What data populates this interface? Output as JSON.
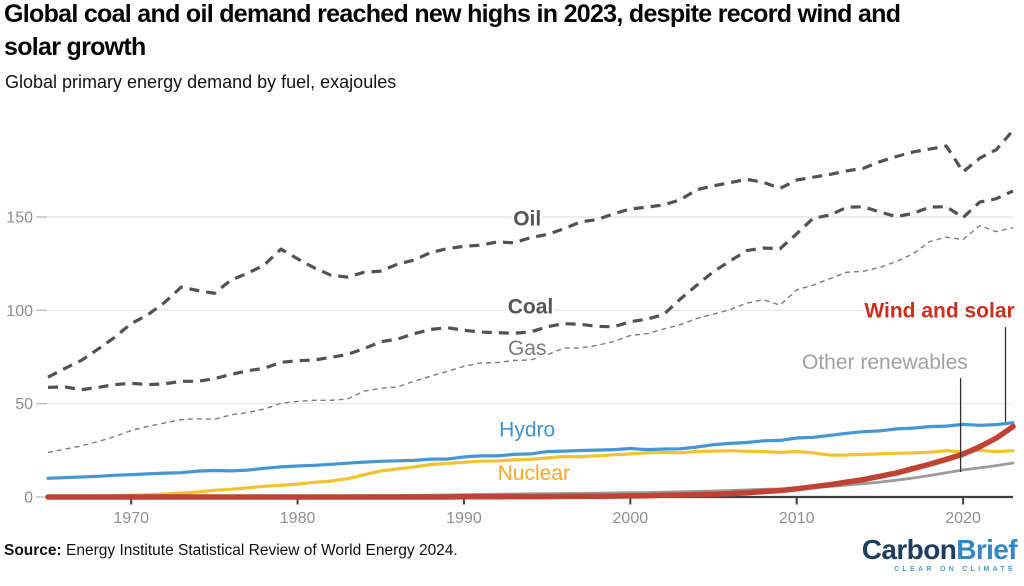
{
  "header": {
    "title_line1": "Global coal and oil demand reached new highs in 2023, despite record wind and",
    "title_line2": "solar growth",
    "subtitle": "Global primary energy demand by fuel, exajoules"
  },
  "footer": {
    "source_label": "Source:",
    "source_text": " Energy Institute Statistical Review of World Energy 2024.",
    "logo": {
      "word_dark": "Carbon",
      "word_light": "Brief",
      "tagline": "CLEAR ON CLIMATE",
      "navy": "#1d3e5f",
      "blue": "#3287c4",
      "tagline_color": "#459fd3"
    }
  },
  "chart_data": {
    "type": "line",
    "title": "Global primary energy demand by fuel, exajoules",
    "xlabel": "",
    "ylabel": "exajoules",
    "x_range": [
      1965,
      2023
    ],
    "ylim": [
      0,
      200
    ],
    "yticks": [
      0,
      50,
      100,
      150
    ],
    "xticks": [
      1970,
      1980,
      1990,
      2000,
      2010,
      2020
    ],
    "grid": "horizontal",
    "legend_position": "inline-labels",
    "years": [
      1965,
      1966,
      1967,
      1968,
      1969,
      1970,
      1971,
      1972,
      1973,
      1974,
      1975,
      1976,
      1977,
      1978,
      1979,
      1980,
      1981,
      1982,
      1983,
      1984,
      1985,
      1986,
      1987,
      1988,
      1989,
      1990,
      1991,
      1992,
      1993,
      1994,
      1995,
      1996,
      1997,
      1998,
      1999,
      2000,
      2001,
      2002,
      2003,
      2004,
      2005,
      2006,
      2007,
      2008,
      2009,
      2010,
      2011,
      2012,
      2013,
      2014,
      2015,
      2016,
      2017,
      2018,
      2019,
      2020,
      2021,
      2022,
      2023
    ],
    "series": [
      {
        "id": "gas",
        "label": "Gas",
        "color": "#7d7d7d",
        "label_color": "#7a7a7a",
        "width": 1.4,
        "dash": "5 4",
        "label_year": 1993.8,
        "label_ej": 80.0,
        "label_bold": false,
        "values": [
          23.9,
          25.6,
          27.4,
          29.7,
          32.3,
          35.6,
          37.8,
          39.6,
          41.4,
          41.9,
          41.6,
          44.0,
          45.3,
          47.1,
          50.2,
          51.2,
          51.8,
          51.8,
          52.5,
          56.7,
          58.3,
          59.0,
          62.0,
          64.7,
          67.3,
          70.0,
          71.8,
          72.0,
          73.1,
          73.4,
          76.1,
          79.9,
          79.8,
          81.2,
          83.3,
          86.5,
          87.5,
          90.0,
          92.3,
          95.7,
          98.0,
          100.4,
          103.9,
          105.7,
          102.8,
          111.0,
          113.5,
          117.0,
          120.4,
          120.9,
          123.0,
          126.2,
          130.3,
          136.9,
          139.2,
          137.9,
          145.4,
          142.1,
          144.4
        ]
      },
      {
        "id": "oil",
        "label": "Oil",
        "color": "#525252",
        "label_color": "#555555",
        "width": 3.2,
        "dash": "10 7",
        "label_year": 1993.8,
        "label_ej": 149.5,
        "label_bold": true,
        "values": [
          64.2,
          68.8,
          73.2,
          79.2,
          85.5,
          92.9,
          97.6,
          104.2,
          112.4,
          110.6,
          109.1,
          116.2,
          119.9,
          124.3,
          132.8,
          127.6,
          122.8,
          118.8,
          117.8,
          120.4,
          121.0,
          124.7,
          126.9,
          131.0,
          133.0,
          134.3,
          134.9,
          136.6,
          136.2,
          138.9,
          140.6,
          143.7,
          147.4,
          148.6,
          151.7,
          154.3,
          155.3,
          156.5,
          159.2,
          164.6,
          166.7,
          168.4,
          170.2,
          168.6,
          165.3,
          169.8,
          171.3,
          172.8,
          174.7,
          176.1,
          179.6,
          182.4,
          184.9,
          186.4,
          188.0,
          174.2,
          181.5,
          186.1,
          196.4
        ]
      },
      {
        "id": "coal",
        "label": "Coal",
        "color": "#525252",
        "label_color": "#555555",
        "width": 3.2,
        "dash": "10 7",
        "label_year": 1994.0,
        "label_ej": 102.3,
        "label_bold": true,
        "values": [
          58.7,
          59.0,
          57.5,
          58.7,
          60.2,
          60.9,
          60.2,
          60.6,
          62.0,
          62.0,
          63.4,
          65.7,
          67.6,
          69.0,
          72.1,
          73.0,
          73.4,
          74.8,
          76.4,
          79.5,
          83.2,
          84.6,
          87.5,
          89.8,
          90.7,
          89.3,
          88.4,
          88.0,
          87.7,
          88.4,
          91.2,
          92.9,
          92.5,
          91.4,
          91.2,
          93.9,
          95.3,
          97.7,
          106.0,
          113.5,
          120.7,
          126.5,
          132.0,
          133.4,
          133.0,
          141.0,
          149.4,
          151.0,
          155.2,
          155.5,
          152.6,
          150.2,
          152.0,
          155.3,
          155.5,
          149.7,
          158.0,
          159.8,
          164.0
        ]
      },
      {
        "id": "other-renewables",
        "label": "Other renewables",
        "color": "#9b9b9b",
        "label_color": "#a1a1a1",
        "width": 2.8,
        "dash": null,
        "label_year": 2015.3,
        "label_ej": 72.5,
        "label_bold": false,
        "values": [
          0.1,
          0.1,
          0.1,
          0.1,
          0.1,
          0.2,
          0.2,
          0.2,
          0.2,
          0.2,
          0.3,
          0.3,
          0.3,
          0.4,
          0.4,
          0.5,
          0.5,
          0.6,
          0.6,
          0.7,
          0.8,
          0.8,
          0.9,
          1.0,
          1.1,
          1.3,
          1.4,
          1.5,
          1.6,
          1.7,
          1.8,
          1.9,
          2.0,
          2.1,
          2.2,
          2.3,
          2.4,
          2.6,
          2.8,
          3.0,
          3.2,
          3.5,
          3.8,
          4.1,
          4.3,
          4.6,
          5.1,
          5.7,
          6.4,
          7.1,
          8.0,
          9.0,
          10.2,
          11.5,
          13.0,
          14.5,
          15.6,
          16.8,
          18.2
        ]
      },
      {
        "id": "nuclear",
        "label": "Nuclear",
        "color": "#f2c22f",
        "label_color": "#f7a82a",
        "width": 3.2,
        "dash": null,
        "label_year": 1994.2,
        "label_ej": 13.0,
        "label_bold": false,
        "values": [
          0.3,
          0.4,
          0.5,
          0.6,
          0.7,
          0.9,
          1.2,
          1.6,
          2.1,
          2.7,
          3.6,
          4.1,
          4.9,
          5.8,
          6.2,
          6.9,
          7.9,
          8.5,
          9.8,
          11.9,
          14.0,
          15.0,
          16.1,
          17.4,
          18.0,
          18.6,
          19.2,
          19.3,
          19.9,
          20.2,
          20.9,
          21.7,
          21.6,
          22.0,
          22.6,
          23.1,
          23.6,
          23.9,
          23.7,
          24.4,
          24.6,
          24.8,
          24.5,
          24.3,
          23.9,
          24.4,
          23.7,
          22.4,
          22.5,
          22.8,
          23.1,
          23.4,
          23.6,
          24.0,
          24.8,
          24.1,
          25.0,
          24.3,
          24.8
        ]
      },
      {
        "id": "hydro",
        "label": "Hydro",
        "color": "#4597d3",
        "label_color": "#3f93d5",
        "width": 3.2,
        "dash": null,
        "label_year": 1993.8,
        "label_ej": 36.3,
        "label_bold": false,
        "values": [
          10.0,
          10.4,
          10.7,
          11.1,
          11.6,
          12.0,
          12.4,
          12.8,
          13.0,
          13.9,
          14.2,
          14.0,
          14.4,
          15.4,
          16.1,
          16.6,
          17.0,
          17.5,
          18.1,
          18.7,
          19.1,
          19.4,
          19.6,
          20.3,
          20.3,
          21.5,
          22.0,
          22.0,
          22.8,
          23.1,
          24.3,
          24.6,
          24.9,
          25.1,
          25.4,
          26.0,
          25.4,
          25.7,
          25.8,
          26.8,
          28.0,
          28.7,
          29.2,
          30.1,
          30.3,
          31.6,
          32.0,
          33.0,
          34.1,
          35.0,
          35.4,
          36.5,
          36.9,
          37.7,
          38.0,
          38.9,
          38.4,
          38.8,
          39.8
        ]
      },
      {
        "id": "wind-and-solar",
        "label": "Wind and solar",
        "color": "#c04232",
        "label_color": "#ca2f1f",
        "width": 5.5,
        "dash": null,
        "label_year": 2023.1,
        "label_ej": 100.3,
        "label_bold": true,
        "label_anchor": "end",
        "values": [
          0.0,
          0.0,
          0.0,
          0.0,
          0.0,
          0.0,
          0.0,
          0.0,
          0.0,
          0.0,
          0.0,
          0.0,
          0.0,
          0.0,
          0.0,
          0.0,
          0.0,
          0.0,
          0.0,
          0.0,
          0.0,
          0.0,
          0.0,
          0.0,
          0.0,
          0.1,
          0.1,
          0.1,
          0.2,
          0.2,
          0.2,
          0.3,
          0.3,
          0.4,
          0.5,
          0.6,
          0.7,
          0.9,
          1.0,
          1.2,
          1.5,
          1.8,
          2.3,
          2.9,
          3.5,
          4.4,
          5.5,
          6.6,
          8.0,
          9.3,
          11.1,
          12.9,
          15.2,
          17.6,
          20.2,
          23.0,
          26.9,
          31.6,
          37.7
        ]
      }
    ],
    "callouts": [
      {
        "id": "wind-and-solar-callout",
        "x_year": 2022.55,
        "ej_from": 91.0,
        "ej_to": 40.3
      },
      {
        "id": "other-renewables-callout",
        "x_year": 2019.85,
        "ej_from": 63.7,
        "ej_to": 13.4
      }
    ]
  }
}
